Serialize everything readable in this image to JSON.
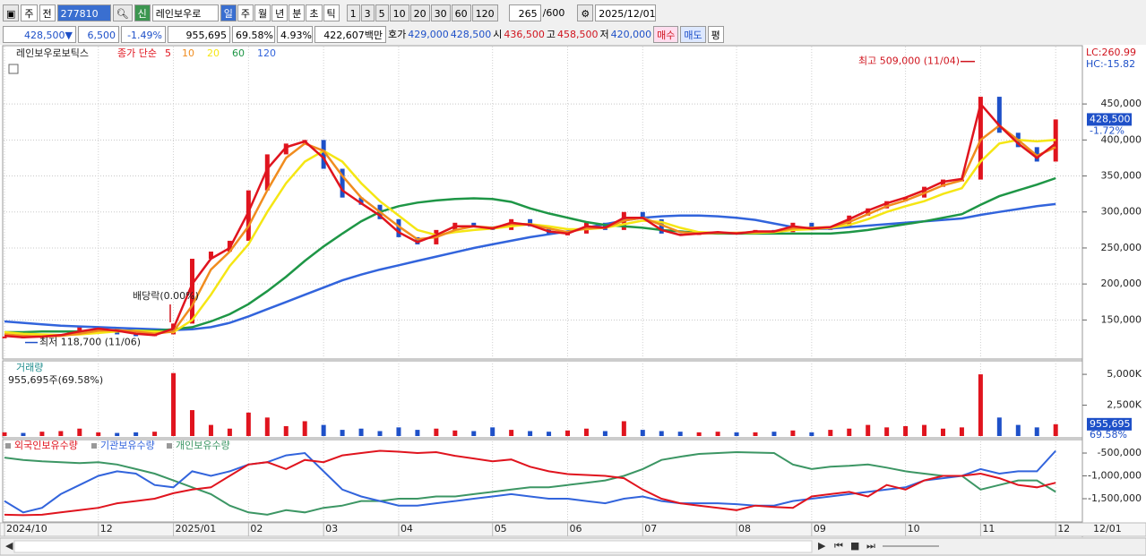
{
  "toolbar": {
    "period_type": "주",
    "mode": "전",
    "code": "277810",
    "badge": "신",
    "name": "레인보우로",
    "intervals": [
      "일",
      "주",
      "월",
      "년",
      "분",
      "초",
      "틱"
    ],
    "counts": [
      "1",
      "3",
      "5",
      "10",
      "20",
      "30",
      "60",
      "120"
    ],
    "visible_bars": "265",
    "total_bars": "/600",
    "date": "2025/12/01"
  },
  "quote_bar": {
    "price": "428,500▼",
    "change": "6,500",
    "change_pct": "-1.49%",
    "volume": "955,695",
    "volume_ratio": "69.58%",
    "turnover": "4.93%",
    "amount": "422,607백만",
    "bid_label": "호가",
    "ask": "429,000",
    "bid": "428,500",
    "open_label": "시",
    "open": "436,500",
    "high_label": "고",
    "high": "458,500",
    "low_label": "저",
    "low": "420,000",
    "buy": "매수",
    "sell": "매도",
    "eval": "평"
  },
  "chart_data": [
    {
      "type": "line",
      "title": "레인보우로보틱스",
      "legend_label": "종가 단순",
      "categories": [
        "2024/10",
        null,
        null,
        null,
        null,
        "12",
        null,
        null,
        null,
        "2025/01",
        null,
        null,
        null,
        "02",
        null,
        null,
        null,
        "03",
        null,
        null,
        null,
        "04",
        null,
        null,
        null,
        null,
        "05",
        null,
        null,
        null,
        "06",
        null,
        null,
        null,
        "07",
        null,
        null,
        null,
        null,
        "08",
        null,
        null,
        null,
        "09",
        null,
        null,
        null,
        null,
        "10",
        null,
        null,
        null,
        "11",
        null,
        null,
        null,
        "12"
      ],
      "close": [
        127000,
        125000,
        128000,
        130000,
        140000,
        140000,
        130000,
        128000,
        130000,
        145000,
        235000,
        245000,
        260000,
        330000,
        380000,
        395000,
        400000,
        360000,
        320000,
        310000,
        290000,
        265000,
        255000,
        275000,
        285000,
        280000,
        275000,
        290000,
        280000,
        270000,
        270000,
        285000,
        275000,
        300000,
        290000,
        270000,
        268000,
        272000,
        272000,
        270000,
        275000,
        272000,
        285000,
        275000,
        280000,
        295000,
        305000,
        315000,
        320000,
        335000,
        345000,
        345000,
        460000,
        410000,
        390000,
        370000,
        428500
      ],
      "series": [
        {
          "name": "5",
          "color": "#e0141e",
          "values": [
            128000,
            126000,
            127000,
            129000,
            134000,
            138000,
            135000,
            131000,
            129000,
            138000,
            200000,
            235000,
            250000,
            300000,
            360000,
            390000,
            398000,
            375000,
            330000,
            312000,
            295000,
            272000,
            258000,
            268000,
            280000,
            280000,
            277000,
            285000,
            282000,
            273000,
            270000,
            280000,
            278000,
            292000,
            292000,
            275000,
            268000,
            270000,
            272000,
            270000,
            273000,
            273000,
            280000,
            277000,
            279000,
            290000,
            302000,
            312000,
            320000,
            330000,
            342000,
            346000,
            450000,
            420000,
            395000,
            375000,
            395000
          ]
        },
        {
          "name": "10",
          "color": "#f08c1e",
          "values": [
            130000,
            128000,
            127000,
            128000,
            131000,
            135000,
            136000,
            134000,
            131000,
            134000,
            170000,
            220000,
            245000,
            280000,
            330000,
            375000,
            395000,
            385000,
            350000,
            320000,
            300000,
            280000,
            262000,
            265000,
            275000,
            280000,
            278000,
            283000,
            283000,
            277000,
            272000,
            277000,
            278000,
            288000,
            292000,
            282000,
            272000,
            270000,
            271000,
            271000,
            272000,
            273000,
            277000,
            278000,
            279000,
            286000,
            297000,
            308000,
            316000,
            326000,
            337000,
            344000,
            400000,
            420000,
            400000,
            378000,
            390000
          ]
        },
        {
          "name": "20",
          "color": "#f5e614",
          "values": [
            133000,
            131000,
            130000,
            129000,
            130000,
            132000,
            134000,
            135000,
            134000,
            133000,
            150000,
            185000,
            225000,
            255000,
            300000,
            340000,
            370000,
            385000,
            370000,
            340000,
            315000,
            295000,
            275000,
            268000,
            272000,
            275000,
            277000,
            280000,
            283000,
            280000,
            276000,
            276000,
            278000,
            283000,
            288000,
            286000,
            278000,
            272000,
            271000,
            271000,
            271000,
            272000,
            275000,
            276000,
            278000,
            282000,
            290000,
            300000,
            308000,
            315000,
            325000,
            333000,
            370000,
            395000,
            400000,
            398000,
            400000
          ]
        },
        {
          "name": "60",
          "color": "#1e9646",
          "values": [
            133000,
            133000,
            134000,
            134000,
            134000,
            135000,
            135000,
            135000,
            135000,
            137000,
            140000,
            148000,
            158000,
            172000,
            190000,
            210000,
            232000,
            252000,
            270000,
            287000,
            300000,
            308000,
            313000,
            316000,
            318000,
            319000,
            318000,
            314000,
            305000,
            298000,
            292000,
            286000,
            282000,
            280000,
            278000,
            275000,
            273000,
            271000,
            270000,
            270000,
            270000,
            270000,
            270000,
            270000,
            270000,
            272000,
            275000,
            279000,
            283000,
            287000,
            292000,
            297000,
            310000,
            322000,
            330000,
            338000,
            347000
          ]
        },
        {
          "name": "120",
          "color": "#3264dc",
          "values": [
            148000,
            146000,
            144000,
            142000,
            141000,
            140000,
            139000,
            138000,
            137000,
            136000,
            137000,
            140000,
            146000,
            155000,
            165000,
            175000,
            185000,
            195000,
            205000,
            213000,
            220000,
            226000,
            232000,
            238000,
            244000,
            250000,
            255000,
            260000,
            265000,
            269000,
            273000,
            278000,
            283000,
            288000,
            292000,
            294000,
            295000,
            295000,
            294000,
            292000,
            289000,
            284000,
            279000,
            276000,
            277000,
            279000,
            281000,
            283000,
            285000,
            287000,
            289000,
            291000,
            296000,
            300000,
            304000,
            308000,
            311000
          ]
        }
      ],
      "ylim": [
        97000,
        526000
      ],
      "yticks": [
        {
          "value": 150000,
          "label": "150,000"
        },
        {
          "value": 200000,
          "label": "200,000"
        },
        {
          "value": 250000,
          "label": "250,000"
        },
        {
          "value": 300000,
          "label": "300,000"
        },
        {
          "value": 350000,
          "label": "350,000"
        },
        {
          "value": 400000,
          "label": "400,000"
        },
        {
          "value": 450000,
          "label": "450,000"
        }
      ],
      "grid": true,
      "up_color": "#e0141e",
      "down_color": "#1e50c8",
      "annotations": [
        {
          "text": "최고 509,000 (11/04)",
          "value": 509000
        },
        {
          "text": "최저 118,700 (11/06)",
          "value": 118700
        },
        {
          "text": "배당락(0.00%)"
        }
      ],
      "lc": "LC:260.99",
      "hc": "HC:-15.82",
      "last_label": "428,500",
      "last_pct": "-1.72%"
    },
    {
      "type": "bar",
      "title": "거래량",
      "subtitle": "955,695주(69.58%)",
      "values": [
        300000,
        250000,
        350000,
        400000,
        600000,
        300000,
        250000,
        300000,
        350000,
        5100000,
        2100000,
        900000,
        600000,
        1900000,
        1500000,
        800000,
        1200000,
        900000,
        500000,
        600000,
        400000,
        700000,
        500000,
        600000,
        450000,
        400000,
        700000,
        500000,
        400000,
        350000,
        450000,
        600000,
        400000,
        1200000,
        500000,
        400000,
        350000,
        300000,
        350000,
        300000,
        300000,
        350000,
        450000,
        300000,
        500000,
        600000,
        900000,
        700000,
        800000,
        900000,
        600000,
        700000,
        5000000,
        1500000,
        900000,
        700000,
        955695
      ],
      "ylim": [
        0,
        5950000
      ],
      "yticks": [
        {
          "value": 2500000,
          "label": "2,500K"
        },
        {
          "value": 5000000,
          "label": "5,000K"
        }
      ],
      "up_color": "#e0141e",
      "down_color": "#1e50c8",
      "title_color": "#1e8c8c",
      "last_label": "955,695",
      "last_pct": "69.58%"
    },
    {
      "type": "line",
      "series": [
        {
          "name": "외국인보유수량",
          "color": "#e0141e",
          "values": [
            -1850000,
            -1860000,
            -1850000,
            -1800000,
            -1750000,
            -1700000,
            -1600000,
            -1550000,
            -1500000,
            -1380000,
            -1300000,
            -1250000,
            -1000000,
            -750000,
            -700000,
            -850000,
            -650000,
            -700000,
            -550000,
            -500000,
            -450000,
            -470000,
            -500000,
            -480000,
            -560000,
            -620000,
            -680000,
            -640000,
            -800000,
            -900000,
            -960000,
            -980000,
            -1000000,
            -1050000,
            -1300000,
            -1500000,
            -1600000,
            -1650000,
            -1700000,
            -1750000,
            -1650000,
            -1680000,
            -1700000,
            -1450000,
            -1400000,
            -1350000,
            -1450000,
            -1200000,
            -1300000,
            -1100000,
            -1000000,
            -1000000,
            -950000,
            -1050000,
            -1200000,
            -1250000,
            -1150000
          ]
        },
        {
          "name": "기관보유수량",
          "color": "#3264dc",
          "values": [
            -1550000,
            -1800000,
            -1700000,
            -1400000,
            -1200000,
            -1000000,
            -900000,
            -950000,
            -1200000,
            -1250000,
            -900000,
            -1000000,
            -900000,
            -750000,
            -700000,
            -550000,
            -500000,
            -900000,
            -1300000,
            -1450000,
            -1550000,
            -1650000,
            -1650000,
            -1600000,
            -1550000,
            -1500000,
            -1450000,
            -1400000,
            -1450000,
            -1500000,
            -1500000,
            -1550000,
            -1600000,
            -1500000,
            -1450000,
            -1550000,
            -1600000,
            -1600000,
            -1600000,
            -1620000,
            -1650000,
            -1650000,
            -1550000,
            -1500000,
            -1450000,
            -1400000,
            -1350000,
            -1300000,
            -1250000,
            -1100000,
            -1050000,
            -1000000,
            -850000,
            -950000,
            -900000,
            -900000,
            -450000
          ]
        },
        {
          "name": "개인보유수량",
          "color": "#3c9664",
          "values": [
            -600000,
            -650000,
            -680000,
            -700000,
            -720000,
            -700000,
            -750000,
            -850000,
            -950000,
            -1100000,
            -1250000,
            -1400000,
            -1650000,
            -1800000,
            -1850000,
            -1750000,
            -1800000,
            -1700000,
            -1650000,
            -1550000,
            -1550000,
            -1500000,
            -1500000,
            -1450000,
            -1450000,
            -1400000,
            -1350000,
            -1300000,
            -1250000,
            -1250000,
            -1200000,
            -1150000,
            -1100000,
            -1000000,
            -850000,
            -650000,
            -580000,
            -520000,
            -500000,
            -480000,
            -490000,
            -500000,
            -750000,
            -850000,
            -800000,
            -780000,
            -750000,
            -820000,
            -900000,
            -950000,
            -1000000,
            -1000000,
            -1300000,
            -1200000,
            -1100000,
            -1100000,
            -1350000
          ]
        }
      ],
      "ylim": [
        -1990000,
        -225000
      ],
      "yticks": [
        {
          "value": -500000,
          "label": "-500,000"
        },
        {
          "value": -1000000,
          "label": "-1,000,000"
        },
        {
          "value": -1500000,
          "label": "-1,500,000"
        }
      ]
    }
  ],
  "x_end_label": "12/01"
}
